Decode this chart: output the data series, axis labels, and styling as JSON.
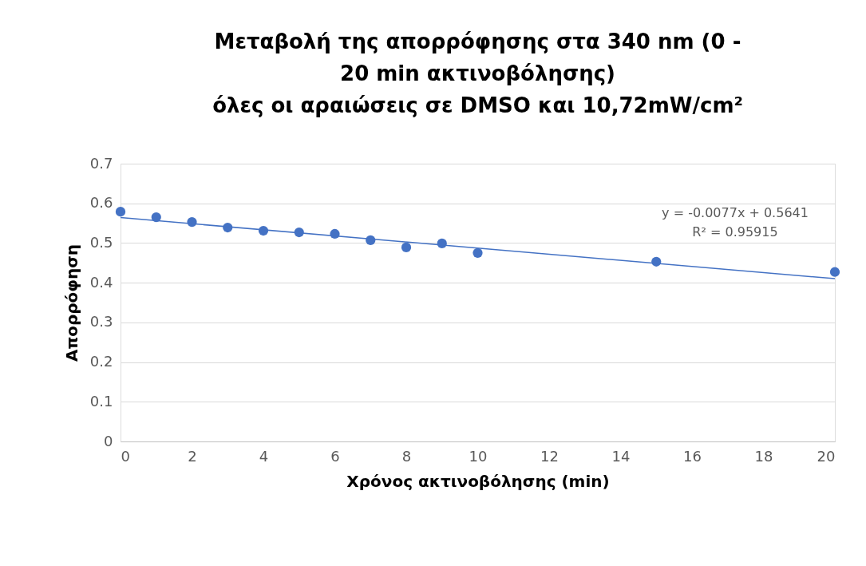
{
  "chart_data": {
    "type": "scatter",
    "title": "Μεταβολή της απορρόφησης στα 340 nm (0 -\n20 min ακτινοβόλησης)\nόλες οι αραιώσεις σε DMSO και 10,72mW/cm²",
    "xlabel": "Χρόνος ακτινοβόλησης (min)",
    "ylabel": "Απορρόφηση",
    "series": [
      {
        "color": "#4472c4",
        "x": [
          0,
          1,
          2,
          3,
          4,
          5,
          6,
          7,
          8,
          9,
          10,
          15,
          20
        ],
        "values": [
          0.579,
          0.565,
          0.553,
          0.539,
          0.531,
          0.527,
          0.523,
          0.507,
          0.489,
          0.499,
          0.475,
          0.453,
          0.427
        ]
      },
      {
        "type": "line",
        "marker": "none",
        "color": "#4472c4",
        "x": [
          0,
          20
        ],
        "values": [
          0.5641,
          0.4101
        ]
      }
    ],
    "annotations": [
      "y = -0.0077x + 0.5641",
      "R² = 0.95915"
    ],
    "xlim": [
      0,
      20
    ],
    "xticks": [
      0,
      2,
      4,
      6,
      8,
      10,
      12,
      14,
      16,
      18,
      20
    ],
    "ylim": [
      0,
      0.7
    ],
    "yticks": [
      0,
      0.1,
      0.2,
      0.3,
      0.4,
      0.5,
      0.6,
      0.7
    ],
    "grid": "y",
    "marker": "circle"
  }
}
